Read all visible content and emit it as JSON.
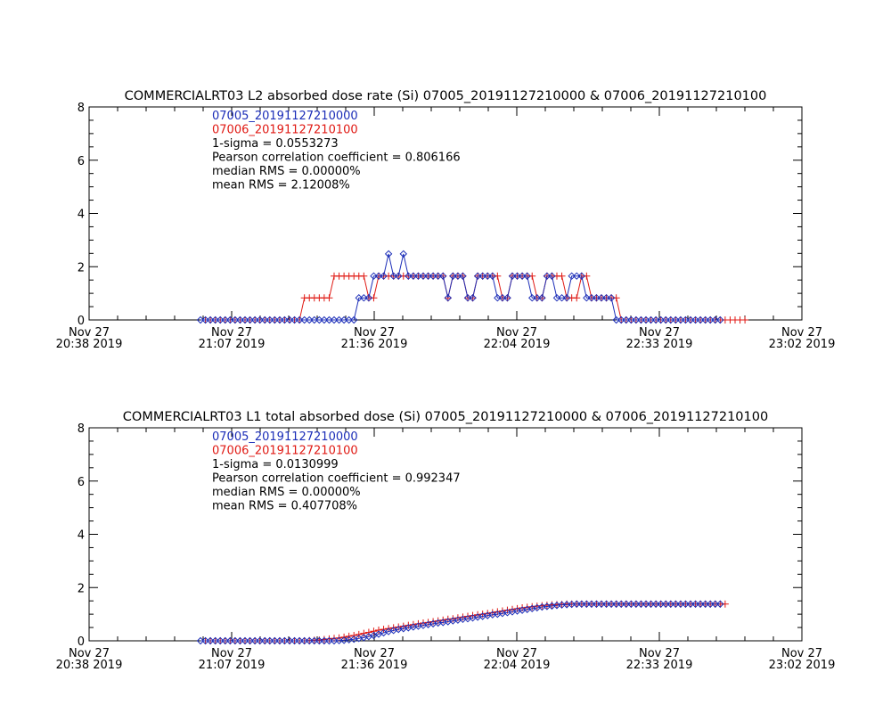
{
  "chart_data": [
    {
      "type": "line",
      "title": "COMMERCIALRT03 L2 absorbed dose rate (Si) 07005_20191127210000 & 07006_20191127210100",
      "xlabel": "",
      "ylabel": "",
      "ylim": [
        0,
        8
      ],
      "yticks": [
        "0",
        "2",
        "4",
        "6",
        "8"
      ],
      "xticks": [
        {
          "line1": "Nov 27",
          "line2": "20:38 2019"
        },
        {
          "line1": "Nov 27",
          "line2": "21:07 2019"
        },
        {
          "line1": "Nov 27",
          "line2": "21:36 2019"
        },
        {
          "line1": "Nov 27",
          "line2": "22:04 2019"
        },
        {
          "line1": "Nov 27",
          "line2": "22:33 2019"
        },
        {
          "line1": "Nov 27",
          "line2": "23:02 2019"
        }
      ],
      "legend_position": "top-left",
      "stats": [
        "1-sigma = 0.0553273",
        "Pearson correlation coefficient = 0.806166",
        "median RMS = 0.00000%",
        "mean RMS = 2.12008%"
      ],
      "series": [
        {
          "name": "07005_20191127210000",
          "color": "#1c2eb8",
          "marker": "diamond",
          "x_start_min": 0,
          "x_step_min": 1,
          "values": [
            0,
            0,
            0,
            0,
            0,
            0,
            0,
            0,
            0,
            0,
            0,
            0,
            0,
            0,
            0,
            0,
            0,
            0,
            0,
            0,
            0,
            0,
            0,
            0,
            0,
            0,
            0,
            0,
            0,
            0,
            0,
            0,
            0.83,
            0.83,
            0.83,
            1.65,
            1.65,
            1.65,
            2.48,
            1.65,
            1.65,
            2.48,
            1.65,
            1.65,
            1.65,
            1.65,
            1.65,
            1.65,
            1.65,
            1.65,
            0.83,
            1.65,
            1.65,
            1.65,
            0.83,
            0.83,
            1.65,
            1.65,
            1.65,
            1.65,
            0.83,
            0.83,
            0.83,
            1.65,
            1.65,
            1.65,
            1.65,
            0.83,
            0.83,
            0.83,
            1.65,
            1.65,
            0.83,
            0.83,
            0.83,
            1.65,
            1.65,
            1.65,
            0.83,
            0.83,
            0.83,
            0.83,
            0.83,
            0.83,
            0,
            0,
            0,
            0,
            0,
            0,
            0,
            0,
            0,
            0,
            0,
            0,
            0,
            0,
            0,
            0,
            0,
            0,
            0,
            0,
            0,
            0
          ]
        },
        {
          "name": "07006_20191127210100",
          "color": "#e01a14",
          "marker": "plus",
          "x_start_min": 1,
          "x_step_min": 1,
          "values": [
            0,
            0,
            0,
            0,
            0,
            0,
            0,
            0,
            0,
            0,
            0,
            0,
            0,
            0,
            0,
            0,
            0,
            0,
            0,
            0,
            0.83,
            0.83,
            0.83,
            0.83,
            0.83,
            0.83,
            1.65,
            1.65,
            1.65,
            1.65,
            1.65,
            1.65,
            1.65,
            0.83,
            0.83,
            1.65,
            1.65,
            1.65,
            1.65,
            1.65,
            1.65,
            1.65,
            1.65,
            1.65,
            1.65,
            1.65,
            1.65,
            1.65,
            1.65,
            0.83,
            1.65,
            1.65,
            1.65,
            0.83,
            0.83,
            1.65,
            1.65,
            1.65,
            1.65,
            1.65,
            0.83,
            0.83,
            1.65,
            1.65,
            1.65,
            1.65,
            1.65,
            0.83,
            0.83,
            1.65,
            1.65,
            1.65,
            1.65,
            0.83,
            0.83,
            0.83,
            1.65,
            1.65,
            0.83,
            0.83,
            0.83,
            0.83,
            0.83,
            0.83,
            0,
            0,
            0,
            0,
            0,
            0,
            0,
            0,
            0,
            0,
            0,
            0,
            0,
            0,
            0,
            0,
            0,
            0,
            0,
            0,
            0,
            0,
            0,
            0,
            0,
            0
          ]
        }
      ]
    },
    {
      "type": "line",
      "title": "COMMERCIALRT03 L1 total absorbed dose (Si) 07005_20191127210000 & 07006_20191127210100",
      "xlabel": "",
      "ylabel": "",
      "ylim": [
        0,
        8
      ],
      "yticks": [
        "0",
        "2",
        "4",
        "6",
        "8"
      ],
      "xticks": [
        {
          "line1": "Nov 27",
          "line2": "20:38 2019"
        },
        {
          "line1": "Nov 27",
          "line2": "21:07 2019"
        },
        {
          "line1": "Nov 27",
          "line2": "21:36 2019"
        },
        {
          "line1": "Nov 27",
          "line2": "22:04 2019"
        },
        {
          "line1": "Nov 27",
          "line2": "22:33 2019"
        },
        {
          "line1": "Nov 27",
          "line2": "23:02 2019"
        }
      ],
      "legend_position": "top-left",
      "stats": [
        "1-sigma = 0.0130999",
        "Pearson correlation coefficient = 0.992347",
        "median RMS = 0.00000%",
        "mean RMS = 0.407708%"
      ],
      "series": [
        {
          "name": "07005_20191127210000",
          "color": "#1c2eb8",
          "marker": "diamond",
          "x_start_min": 0,
          "x_step_min": 1,
          "values": [
            0,
            0,
            0,
            0,
            0,
            0,
            0,
            0,
            0,
            0,
            0,
            0,
            0,
            0,
            0,
            0,
            0,
            0,
            0,
            0,
            0,
            0,
            0,
            0,
            0,
            0,
            0,
            0,
            0.01,
            0.02,
            0.04,
            0.06,
            0.09,
            0.12,
            0.16,
            0.2,
            0.25,
            0.3,
            0.35,
            0.39,
            0.43,
            0.46,
            0.49,
            0.52,
            0.55,
            0.58,
            0.61,
            0.64,
            0.67,
            0.69,
            0.72,
            0.75,
            0.78,
            0.81,
            0.83,
            0.86,
            0.89,
            0.92,
            0.95,
            0.98,
            1.0,
            1.03,
            1.06,
            1.09,
            1.12,
            1.15,
            1.18,
            1.21,
            1.24,
            1.27,
            1.29,
            1.31,
            1.33,
            1.35,
            1.36,
            1.37,
            1.38,
            1.38,
            1.38,
            1.38,
            1.38,
            1.38,
            1.38,
            1.38,
            1.38,
            1.38,
            1.38,
            1.38,
            1.38,
            1.38,
            1.38,
            1.38,
            1.38,
            1.38,
            1.38,
            1.38,
            1.38,
            1.38,
            1.38,
            1.38,
            1.38,
            1.38,
            1.38,
            1.38,
            1.38,
            1.38
          ]
        },
        {
          "name": "07006_20191127210100",
          "color": "#e01a14",
          "marker": "plus",
          "x_start_min": 1,
          "x_step_min": 1,
          "values": [
            0,
            0,
            0,
            0,
            0,
            0,
            0,
            0,
            0,
            0,
            0,
            0,
            0,
            0,
            0,
            0,
            0,
            0,
            0,
            0,
            0,
            0.01,
            0.02,
            0.03,
            0.05,
            0.07,
            0.09,
            0.11,
            0.14,
            0.17,
            0.2,
            0.24,
            0.28,
            0.32,
            0.36,
            0.4,
            0.43,
            0.46,
            0.49,
            0.52,
            0.55,
            0.58,
            0.61,
            0.64,
            0.67,
            0.69,
            0.72,
            0.75,
            0.78,
            0.81,
            0.83,
            0.86,
            0.89,
            0.92,
            0.95,
            0.98,
            1.0,
            1.03,
            1.06,
            1.09,
            1.12,
            1.15,
            1.18,
            1.21,
            1.24,
            1.26,
            1.28,
            1.3,
            1.32,
            1.34,
            1.35,
            1.36,
            1.37,
            1.38,
            1.38,
            1.38,
            1.38,
            1.38,
            1.38,
            1.38,
            1.38,
            1.38,
            1.38,
            1.38,
            1.38,
            1.38,
            1.38,
            1.38,
            1.38,
            1.38,
            1.38,
            1.38,
            1.38,
            1.38,
            1.38,
            1.38,
            1.38,
            1.38,
            1.38,
            1.38,
            1.38,
            1.38,
            1.38,
            1.38,
            1.38,
            1.38
          ]
        }
      ]
    }
  ]
}
